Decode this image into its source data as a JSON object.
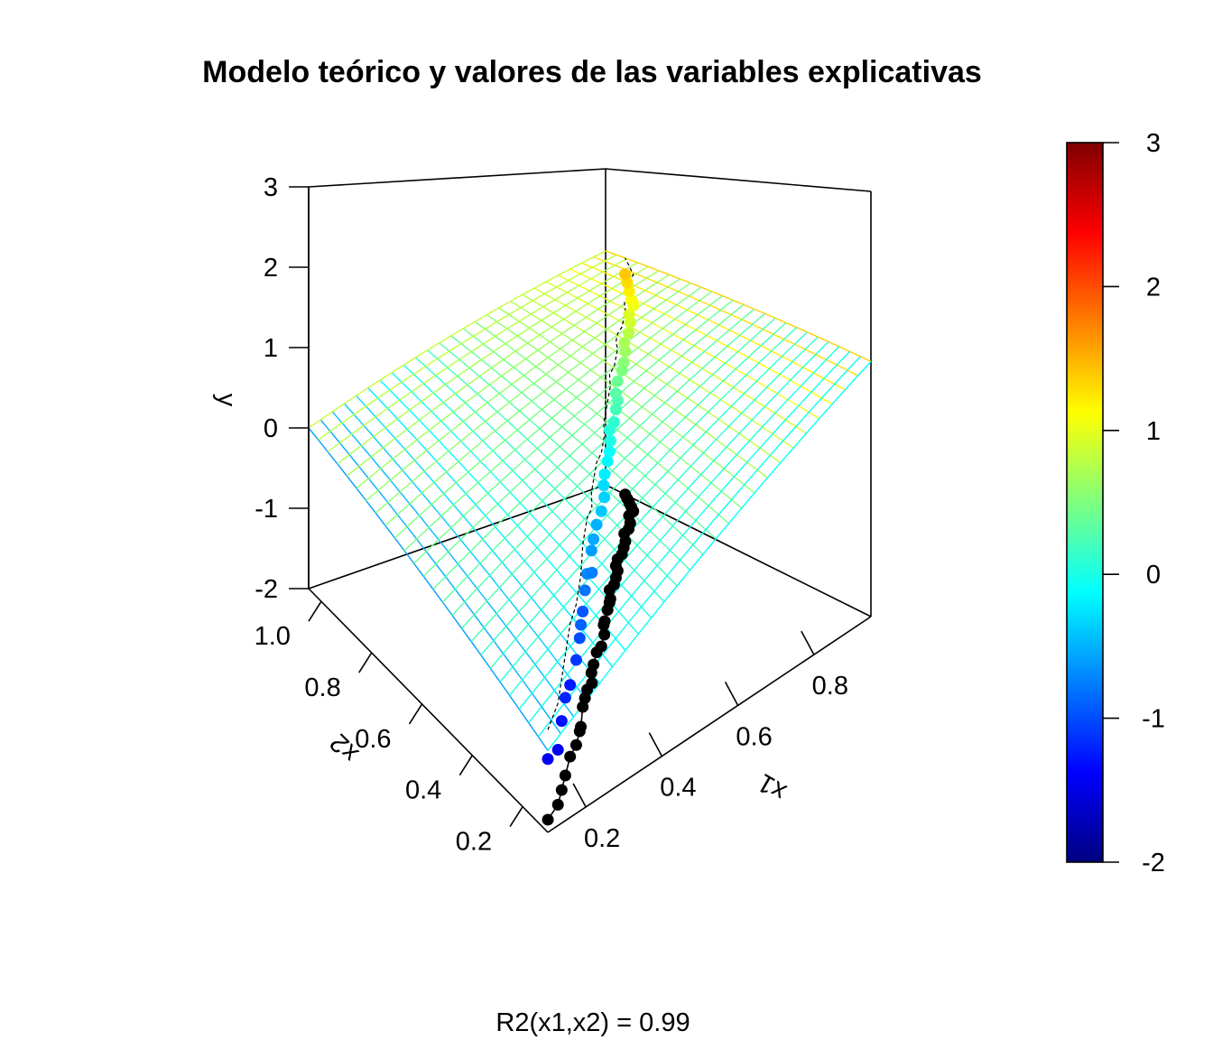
{
  "chart_data": {
    "type": "scatter",
    "subtype": "3d-scatter-with-regression-plane",
    "title": "Modelo teórico y valores de las variables explicativas",
    "subtitle": "R2(x1,x2) = 0.99",
    "xlabel": "x1",
    "ylabel": "x2",
    "zlabel": "y",
    "xlim": [
      0.1,
      0.95
    ],
    "ylim": [
      0.1,
      1.05
    ],
    "zlim": [
      -2,
      3
    ],
    "x_ticks": [
      "0.2",
      "0.4",
      "0.6",
      "0.8"
    ],
    "y_ticks": [
      "0.2",
      "0.4",
      "0.6",
      "0.8",
      "1.0"
    ],
    "z_ticks": [
      "-2",
      "-1",
      "0",
      "1",
      "2",
      "3"
    ],
    "colorbar": {
      "range": [
        -2,
        3
      ],
      "ticks": [
        "-2",
        "-1",
        "0",
        "1",
        "2",
        "3"
      ],
      "palette": "jet",
      "colors": [
        "#00007F",
        "#0000FF",
        "#007FFF",
        "#00FFFF",
        "#7FFF7F",
        "#FFFF00",
        "#FF7F00",
        "#FF0000",
        "#7F0000"
      ]
    },
    "plane": {
      "description_free": true,
      "corner_values": {
        "x1min_x2min": -1.2,
        "x1max_x2min": 1.0,
        "x1min_x2max": 0.0,
        "x1max_x2max": 1.7
      },
      "grid_lines": 25,
      "line_color_low": "#00FFFF",
      "line_color_high": "#FFFF33"
    },
    "points_x1_x2": [
      [
        0.12,
        0.13
      ],
      [
        0.16,
        0.15
      ],
      [
        0.19,
        0.18
      ],
      [
        0.22,
        0.21
      ],
      [
        0.26,
        0.25
      ],
      [
        0.29,
        0.27
      ],
      [
        0.32,
        0.3
      ],
      [
        0.33,
        0.31
      ],
      [
        0.37,
        0.36
      ],
      [
        0.39,
        0.38
      ],
      [
        0.41,
        0.4
      ],
      [
        0.43,
        0.41
      ],
      [
        0.45,
        0.44
      ],
      [
        0.47,
        0.46
      ],
      [
        0.5,
        0.49
      ],
      [
        0.52,
        0.5
      ],
      [
        0.55,
        0.53
      ],
      [
        0.57,
        0.56
      ],
      [
        0.58,
        0.57
      ],
      [
        0.61,
        0.6
      ],
      [
        0.63,
        0.62
      ],
      [
        0.64,
        0.63
      ],
      [
        0.66,
        0.66
      ],
      [
        0.68,
        0.67
      ],
      [
        0.7,
        0.69
      ],
      [
        0.72,
        0.71
      ],
      [
        0.73,
        0.73
      ],
      [
        0.75,
        0.75
      ],
      [
        0.77,
        0.76
      ],
      [
        0.79,
        0.78
      ],
      [
        0.81,
        0.8
      ],
      [
        0.83,
        0.83
      ],
      [
        0.85,
        0.84
      ],
      [
        0.87,
        0.86
      ],
      [
        0.89,
        0.89
      ],
      [
        0.91,
        0.9
      ],
      [
        0.92,
        0.92
      ],
      [
        0.93,
        0.94
      ],
      [
        0.94,
        0.96
      ],
      [
        0.95,
        0.98
      ]
    ],
    "point_values_y": [
      -1.4,
      -1.45,
      -1.3,
      -1.2,
      -1.25,
      -1.1,
      -1.0,
      -0.9,
      -0.95,
      -0.8,
      -0.7,
      -0.75,
      -0.6,
      -0.55,
      -0.5,
      -0.4,
      -0.35,
      -0.3,
      -0.2,
      -0.15,
      -0.1,
      0.0,
      0.05,
      0.1,
      0.2,
      0.25,
      0.3,
      0.4,
      0.5,
      0.55,
      0.65,
      0.7,
      0.8,
      0.9,
      0.95,
      1.05,
      1.1,
      1.2,
      1.3,
      1.4
    ],
    "point_color_projection": "#000000",
    "grid": false
  }
}
